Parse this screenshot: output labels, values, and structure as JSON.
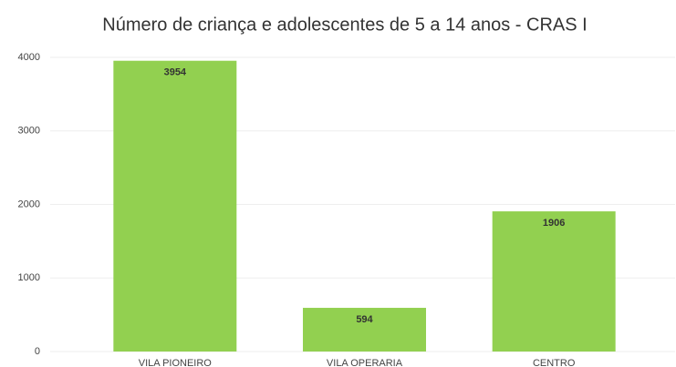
{
  "chart_data": {
    "type": "bar",
    "title": "Número de criança e adolescentes de 5 a 14 anos - CRAS I",
    "categories": [
      "VILA PIONEIRO",
      "VILA OPERARIA",
      "CENTRO"
    ],
    "values": [
      3954,
      594,
      1906
    ],
    "color": "#92d050",
    "ylim": [
      0,
      4000
    ],
    "yticks": [
      0,
      1000,
      2000,
      3000,
      4000
    ],
    "grid": true
  }
}
